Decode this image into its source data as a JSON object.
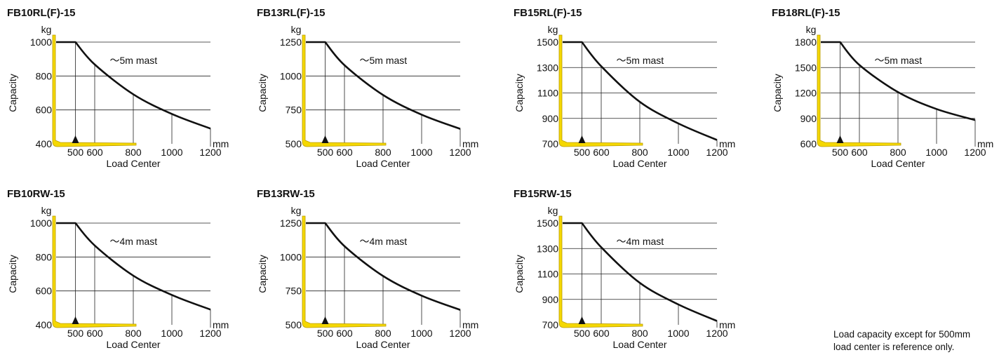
{
  "chart_data": [
    {
      "type": "line",
      "title": "FB10RL(F)-15",
      "ylabel": "Capacity",
      "yunit": "kg",
      "xlabel": "Load Center",
      "xunit": "mm",
      "annotation": "〜5m mast",
      "ylim": [
        400,
        1000
      ],
      "yticks": [
        400,
        600,
        800,
        1000
      ],
      "xlim": [
        400,
        1200
      ],
      "xticks": [
        500,
        600,
        800,
        1000,
        1200
      ],
      "x": [
        400,
        500,
        600,
        800,
        1000,
        1200
      ],
      "y": [
        1000,
        1000,
        868,
        692,
        576,
        490
      ]
    },
    {
      "type": "line",
      "title": "FB13RL(F)-15",
      "ylabel": "Capacity",
      "yunit": "kg",
      "xlabel": "Load Center",
      "xunit": "mm",
      "annotation": "〜5m mast",
      "ylim": [
        500,
        1250
      ],
      "yticks": [
        500,
        750,
        1000,
        1250
      ],
      "xlim": [
        400,
        1200
      ],
      "xticks": [
        500,
        600,
        800,
        1000,
        1200
      ],
      "x": [
        400,
        500,
        600,
        800,
        1000,
        1200
      ],
      "y": [
        1250,
        1250,
        1080,
        860,
        715,
        610
      ]
    },
    {
      "type": "line",
      "title": "FB15RL(F)-15",
      "ylabel": "Capacity",
      "yunit": "kg",
      "xlabel": "Load Center",
      "xunit": "mm",
      "annotation": "〜5m mast",
      "ylim": [
        700,
        1500
      ],
      "yticks": [
        700,
        900,
        1100,
        1300,
        1500
      ],
      "xlim": [
        400,
        1200
      ],
      "xticks": [
        500,
        600,
        800,
        1000,
        1200
      ],
      "x": [
        400,
        500,
        600,
        800,
        1000,
        1200
      ],
      "y": [
        1500,
        1500,
        1310,
        1030,
        860,
        730
      ]
    },
    {
      "type": "line",
      "title": "FB18RL(F)-15",
      "ylabel": "Capacity",
      "yunit": "kg",
      "xlabel": "Load Center",
      "xunit": "mm",
      "annotation": "〜5m mast",
      "ylim": [
        600,
        1800
      ],
      "yticks": [
        600,
        900,
        1200,
        1500,
        1800
      ],
      "xlim": [
        400,
        1200
      ],
      "xticks": [
        500,
        600,
        800,
        1000,
        1200
      ],
      "x": [
        400,
        500,
        600,
        800,
        1000,
        1200
      ],
      "y": [
        1800,
        1800,
        1530,
        1210,
        1010,
        880
      ]
    },
    {
      "type": "line",
      "title": "FB10RW-15",
      "ylabel": "Capacity",
      "yunit": "kg",
      "xlabel": "Load Center",
      "xunit": "mm",
      "annotation": "〜4m mast",
      "ylim": [
        400,
        1000
      ],
      "yticks": [
        400,
        600,
        800,
        1000
      ],
      "xlim": [
        400,
        1200
      ],
      "xticks": [
        500,
        600,
        800,
        1000,
        1200
      ],
      "x": [
        400,
        500,
        600,
        800,
        1000,
        1200
      ],
      "y": [
        1000,
        1000,
        868,
        690,
        576,
        490
      ]
    },
    {
      "type": "line",
      "title": "FB13RW-15",
      "ylabel": "Capacity",
      "yunit": "kg",
      "xlabel": "Load Center",
      "xunit": "mm",
      "annotation": "〜4m mast",
      "ylim": [
        500,
        1250
      ],
      "yticks": [
        500,
        750,
        1000,
        1250
      ],
      "xlim": [
        400,
        1200
      ],
      "xticks": [
        500,
        600,
        800,
        1000,
        1200
      ],
      "x": [
        400,
        500,
        600,
        800,
        1000,
        1200
      ],
      "y": [
        1250,
        1250,
        1080,
        860,
        715,
        610
      ]
    },
    {
      "type": "line",
      "title": "FB15RW-15",
      "ylabel": "Capacity",
      "yunit": "kg",
      "xlabel": "Load Center",
      "xunit": "mm",
      "annotation": "〜4m mast",
      "ylim": [
        700,
        1500
      ],
      "yticks": [
        700,
        900,
        1100,
        1300,
        1500
      ],
      "xlim": [
        400,
        1200
      ],
      "xticks": [
        500,
        600,
        800,
        1000,
        1200
      ],
      "x": [
        400,
        500,
        600,
        800,
        1000,
        1200
      ],
      "y": [
        1500,
        1500,
        1310,
        1030,
        860,
        730
      ]
    }
  ],
  "note": [
    "Load capacity except for 500mm",
    "load center is reference only."
  ],
  "colors": {
    "fork": "#f5d800",
    "fork_edge": "#b79a00",
    "curve": "#111111",
    "grid": "#222222"
  }
}
